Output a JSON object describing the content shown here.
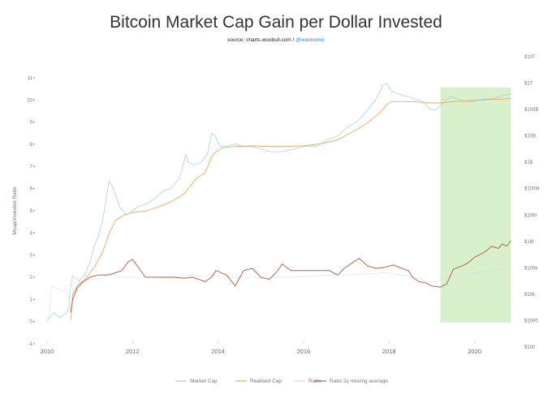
{
  "chart_data": {
    "type": "line",
    "title": "Bitcoin Market Cap Gain per Dollar Invested",
    "subtitle_prefix": "source: charts.woobull.com / ",
    "subtitle_handle": "@woonomic",
    "ylabel": "Mcap/Invested Ratio",
    "xlim": [
      2010.0,
      2020.9
    ],
    "ylim": [
      -1,
      11
    ],
    "y_ticks": [
      "-1",
      "0",
      "1",
      "2",
      "3",
      "4",
      "5",
      "6",
      "7",
      "8",
      "9",
      "10",
      "11"
    ],
    "y2_ticks": [
      "$100",
      "$1000",
      "$10k",
      "$100k",
      "$1M",
      "$10M",
      "$100M",
      "$1B",
      "$10B",
      "$100B",
      "$1T",
      "$10T"
    ],
    "y2_log_range": [
      2,
      13
    ],
    "x_ticks": [
      "2010",
      "2012",
      "2014",
      "2016",
      "2018",
      "2020"
    ],
    "highlight_region": {
      "x": [
        2019.2,
        2020.85
      ],
      "color": "#d9f0cc"
    },
    "colors": {
      "market_cap": "#9ecae1",
      "realised_cap": "#f4a460",
      "ratio": "#dddddd",
      "ratio_ma": "#b5664a"
    },
    "series": [
      {
        "name": "Market Cap",
        "axis": "right_log",
        "x": [
          2010.0,
          2010.15,
          2010.3,
          2010.45,
          2010.52,
          2010.55,
          2010.6,
          2010.75,
          2010.9,
          2011.0,
          2011.1,
          2011.2,
          2011.3,
          2011.38,
          2011.45,
          2011.55,
          2011.7,
          2011.85,
          2011.95,
          2012.1,
          2012.3,
          2012.5,
          2012.7,
          2012.9,
          2013.1,
          2013.25,
          2013.3,
          2013.45,
          2013.6,
          2013.75,
          2013.85,
          2013.93,
          2014.05,
          2014.2,
          2014.4,
          2014.6,
          2014.8,
          2015.0,
          2015.2,
          2015.5,
          2015.8,
          2016.0,
          2016.3,
          2016.5,
          2016.8,
          2017.0,
          2017.3,
          2017.5,
          2017.7,
          2017.85,
          2017.95,
          2018.05,
          2018.2,
          2018.4,
          2018.6,
          2018.8,
          2018.95,
          2019.1,
          2019.3,
          2019.45,
          2019.6,
          2019.8,
          2020.0,
          2020.2,
          2020.4,
          2020.6,
          2020.85
        ],
        "values": [
          3.0,
          3.3,
          3.1,
          3.3,
          3.5,
          4.3,
          4.7,
          4.5,
          4.8,
          5.2,
          5.8,
          6.2,
          6.8,
          7.6,
          8.3,
          8.0,
          7.3,
          7.0,
          7.1,
          7.3,
          7.4,
          7.6,
          7.9,
          8.0,
          8.4,
          9.3,
          9.0,
          8.9,
          9.0,
          9.3,
          10.1,
          10.0,
          9.6,
          9.6,
          9.7,
          9.6,
          9.6,
          9.5,
          9.4,
          9.4,
          9.5,
          9.6,
          9.6,
          9.8,
          10.0,
          10.3,
          10.6,
          11.0,
          11.4,
          11.9,
          12.0,
          11.7,
          11.6,
          11.5,
          11.4,
          11.3,
          11.0,
          11.0,
          11.3,
          11.5,
          11.4,
          11.3,
          11.3,
          11.4,
          11.4,
          11.5,
          11.6
        ]
      },
      {
        "name": "Realised Cap",
        "axis": "right_log",
        "x": [
          2010.55,
          2010.6,
          2010.7,
          2010.9,
          2011.1,
          2011.3,
          2011.45,
          2011.6,
          2011.8,
          2012.0,
          2012.3,
          2012.6,
          2012.9,
          2013.2,
          2013.35,
          2013.5,
          2013.7,
          2013.85,
          2013.95,
          2014.1,
          2014.4,
          2014.8,
          2015.2,
          2015.6,
          2016.0,
          2016.4,
          2016.8,
          2017.2,
          2017.5,
          2017.8,
          2017.95,
          2018.05,
          2018.3,
          2018.6,
          2018.9,
          2019.2,
          2019.5,
          2019.8,
          2020.1,
          2020.4,
          2020.7,
          2020.85
        ],
        "values": [
          3.0,
          4.0,
          4.3,
          4.6,
          5.0,
          5.6,
          6.3,
          6.8,
          7.0,
          7.1,
          7.15,
          7.3,
          7.5,
          7.8,
          8.1,
          8.4,
          8.6,
          9.2,
          9.4,
          9.55,
          9.6,
          9.62,
          9.6,
          9.6,
          9.62,
          9.7,
          9.85,
          10.2,
          10.5,
          10.9,
          11.2,
          11.3,
          11.3,
          11.3,
          11.25,
          11.25,
          11.3,
          11.33,
          11.36,
          11.38,
          11.4,
          11.42
        ]
      },
      {
        "name": "Ratio",
        "axis": "left",
        "x": [
          2010.05,
          2010.1,
          2010.2,
          2010.35,
          2010.45,
          2010.52,
          2010.55,
          2010.6,
          2010.75,
          2010.9,
          2011.1,
          2011.3,
          2011.45,
          2011.7,
          2012.0,
          2012.5,
          2013.0,
          2013.3,
          2013.6,
          2013.9,
          2014.2,
          2014.6,
          2015.0,
          2015.4,
          2015.8,
          2016.2,
          2016.6,
          2017.0,
          2017.5,
          2017.95,
          2018.3,
          2018.6,
          2018.9,
          2019.1,
          2019.3,
          2019.6,
          2020.0,
          2020.4,
          2020.85
        ],
        "values": [
          0.2,
          1.6,
          1.5,
          1.4,
          1.5,
          1.0,
          1.6,
          1.7,
          1.8,
          1.9,
          1.9,
          1.95,
          2.2,
          2.0,
          2.0,
          2.0,
          1.95,
          2.1,
          2.05,
          2.1,
          2.0,
          2.0,
          1.95,
          2.0,
          2.0,
          2.05,
          2.1,
          2.1,
          2.15,
          2.2,
          2.1,
          2.0,
          1.8,
          1.8,
          2.0,
          2.1,
          2.2,
          2.3,
          2.4
        ]
      },
      {
        "name": "Ratio 2y moving average",
        "axis": "left",
        "x": [
          2010.55,
          2010.6,
          2010.7,
          2010.85,
          2011.0,
          2011.2,
          2011.45,
          2011.6,
          2011.75,
          2011.9,
          2012.0,
          2012.3,
          2012.6,
          2012.8,
          2013.0,
          2013.2,
          2013.4,
          2013.55,
          2013.7,
          2013.85,
          2013.95,
          2014.2,
          2014.4,
          2014.6,
          2014.8,
          2015.0,
          2015.2,
          2015.4,
          2015.5,
          2015.7,
          2016.0,
          2016.2,
          2016.4,
          2016.6,
          2016.8,
          2016.95,
          2017.1,
          2017.3,
          2017.5,
          2017.7,
          2017.9,
          2018.1,
          2018.3,
          2018.45,
          2018.55,
          2018.7,
          2018.85,
          2019.0,
          2019.2,
          2019.35,
          2019.5,
          2019.7,
          2019.85,
          2020.0,
          2020.1,
          2020.25,
          2020.4,
          2020.55,
          2020.65,
          2020.75,
          2020.85
        ],
        "values": [
          0.4,
          1.0,
          1.5,
          1.8,
          2.0,
          2.1,
          2.1,
          2.2,
          2.3,
          2.7,
          2.8,
          2.0,
          2.0,
          2.0,
          2.0,
          1.95,
          2.0,
          1.9,
          1.8,
          2.0,
          2.3,
          2.1,
          1.6,
          2.3,
          2.4,
          2.0,
          1.9,
          2.3,
          2.6,
          2.3,
          2.3,
          2.3,
          2.3,
          2.3,
          2.1,
          2.4,
          2.6,
          2.85,
          2.5,
          2.4,
          2.45,
          2.55,
          2.4,
          2.3,
          2.0,
          1.8,
          1.75,
          1.6,
          1.55,
          1.7,
          2.35,
          2.5,
          2.65,
          2.9,
          3.0,
          3.15,
          3.4,
          3.3,
          3.5,
          3.4,
          3.65
        ]
      }
    ]
  }
}
